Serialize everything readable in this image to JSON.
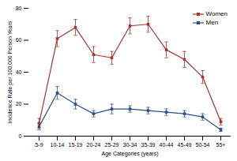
{
  "chart_data": {
    "type": "line",
    "categories": [
      "5-9",
      "10-14",
      "15-19",
      "20-24",
      "25-29",
      "30-34",
      "35-39",
      "40-44",
      "45-49",
      "50-54",
      "55+"
    ],
    "series": [
      {
        "name": "Women",
        "color": "#a83232",
        "marker": "square",
        "values": [
          8,
          61,
          68,
          51,
          49,
          69,
          70,
          54,
          48,
          37,
          9
        ],
        "errors": [
          3,
          5,
          5,
          5,
          4,
          5,
          5,
          5,
          5,
          4,
          2
        ]
      },
      {
        "name": "Men",
        "color": "#2b4f8c",
        "marker": "square",
        "values": [
          6,
          27,
          20,
          14,
          17,
          17,
          16,
          15,
          14,
          12,
          4
        ],
        "errors": [
          2,
          4,
          3,
          2,
          3,
          2,
          2,
          2,
          2,
          2,
          1
        ]
      }
    ],
    "xlabel": "Age Categories (years)",
    "ylabel": "Incidence Rate per 100,000 Person Years",
    "ylim": [
      0,
      80
    ],
    "yticks": [
      0,
      20,
      40,
      60,
      80
    ],
    "legend": "upper right"
  }
}
